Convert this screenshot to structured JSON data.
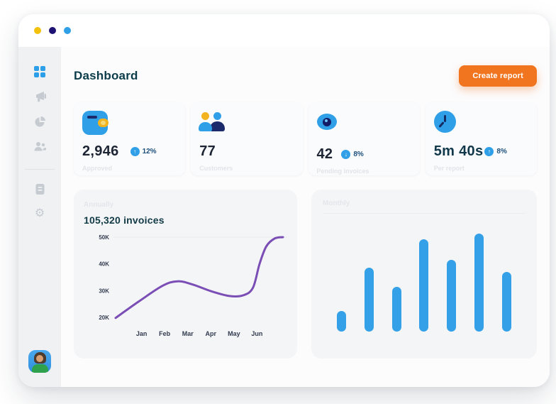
{
  "window": {
    "traffic_lights": [
      {
        "name": "dot-yellow",
        "color": "#F4C20D"
      },
      {
        "name": "dot-navy",
        "color": "#1D1273"
      },
      {
        "name": "dot-blue",
        "color": "#2F9FE8"
      }
    ]
  },
  "sidebar": {
    "items": [
      {
        "id": "dashboard",
        "icon": "grid-icon",
        "active": true
      },
      {
        "id": "announcements",
        "icon": "megaphone-icon",
        "active": false
      },
      {
        "id": "analytics",
        "icon": "pie-chart-icon",
        "active": false
      },
      {
        "id": "customers",
        "icon": "users-icon",
        "active": false
      },
      {
        "id": "invoices",
        "icon": "document-icon",
        "active": false
      },
      {
        "id": "settings",
        "icon": "gear-icon",
        "active": false
      }
    ],
    "profile_icon": "user-avatar"
  },
  "header": {
    "title": "Dashboard",
    "create_report_label": "Create report"
  },
  "stats": [
    {
      "icon": "wallet-icon",
      "value": "2,946",
      "label": "Approved",
      "delta": {
        "direction": "up",
        "arrow": "↑",
        "value": "12%"
      }
    },
    {
      "icon": "users-icon",
      "value": "77",
      "label": "Customers",
      "delta": null
    },
    {
      "icon": "eye-icon",
      "value": "42",
      "label": "Pending invoices",
      "delta": {
        "direction": "down",
        "arrow": "↓",
        "value": "8%"
      }
    },
    {
      "icon": "clock-icon",
      "value": "5m 40s",
      "label": "Per report",
      "delta": {
        "direction": "up",
        "arrow": "↑",
        "value": "8%"
      }
    }
  ],
  "chart_data": [
    {
      "type": "line",
      "subtitle": "Annually",
      "title": "105,320 invoices",
      "x_labels": [
        "Jan",
        "Feb",
        "Mar",
        "Apr",
        "May",
        "Jun"
      ],
      "y_ticks": [
        {
          "label": "50K",
          "value": 50
        },
        {
          "label": "40K",
          "value": 40
        },
        {
          "label": "30K",
          "value": 30
        },
        {
          "label": "20K",
          "value": 20
        }
      ],
      "ylim_thousands": [
        20,
        50
      ],
      "points_frac_vsK": [
        [
          0,
          19.8
        ],
        [
          0.14,
          26
        ],
        [
          0.28,
          31.8
        ],
        [
          0.37,
          33.5
        ],
        [
          0.46,
          32.3
        ],
        [
          0.57,
          29.8
        ],
        [
          0.68,
          28.0
        ],
        [
          0.76,
          28.2
        ],
        [
          0.82,
          31
        ],
        [
          0.86,
          40
        ],
        [
          0.9,
          46.5
        ],
        [
          0.95,
          49.5
        ],
        [
          1,
          50
        ]
      ],
      "month_values_thousands": {
        "Jan": 26,
        "Feb": 33,
        "Mar": 32.5,
        "Apr": 29.5,
        "May": 28,
        "Jun": 44
      },
      "line_color": "#7A4EB5",
      "grid": "single line at 50K",
      "legend": "none"
    },
    {
      "type": "bar",
      "subtitle": "Monthly",
      "values_pct_of_max": [
        21,
        65,
        46,
        94,
        73,
        100,
        61
      ],
      "bar_color": "#33A0E8",
      "x_labels": [],
      "legend": "none"
    }
  ],
  "colors": {
    "accent_blue": "#2F9FE8",
    "accent_orange": "#F1741F",
    "line_purple": "#7A4EB5",
    "title_dark_teal": "#0B3C49",
    "badge_pct_navy": "#1C4F7C",
    "sidebar_bg": "#EFF1F3",
    "chart_card_bg": "#F4F5F7"
  }
}
